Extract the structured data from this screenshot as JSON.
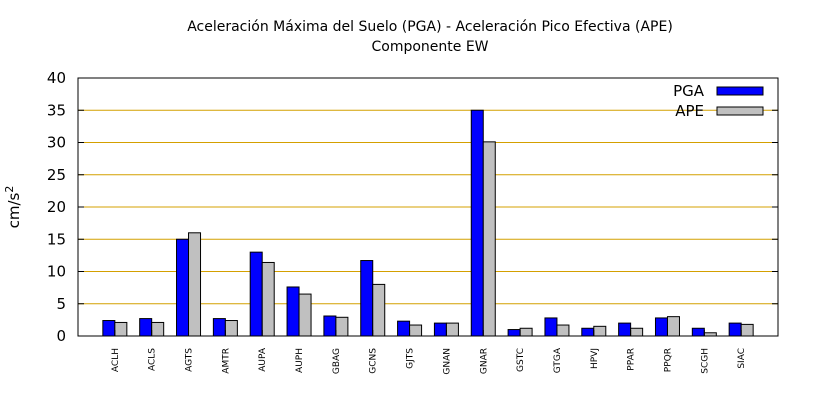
{
  "chart_data": {
    "type": "bar",
    "title": "Aceleración Máxima del Suelo (PGA) -  Aceleración Pico Efectiva (APE)",
    "subtitle": "Componente EW",
    "ylabel": "cm/s",
    "ylabel_superscript": "2",
    "xlabel": "",
    "ylim": [
      0,
      40
    ],
    "yticks": [
      0,
      5,
      10,
      15,
      20,
      25,
      30,
      35,
      40
    ],
    "grid": true,
    "legend_position": "top-right",
    "categories": [
      "ACLH",
      "ACLS",
      "AGTS",
      "AMTR",
      "AUPA",
      "AUPH",
      "GBAG",
      "GCNS",
      "GJTS",
      "GNAN",
      "GNAR",
      "GSTC",
      "GTGA",
      "HPVJ",
      "PPAR",
      "PPQR",
      "SCGH",
      "SIAC"
    ],
    "series": [
      {
        "name": "PGA",
        "color": "#0000ff",
        "values": [
          2.4,
          2.7,
          15.0,
          2.7,
          13.0,
          7.6,
          3.1,
          11.7,
          2.3,
          2.0,
          35.0,
          1.0,
          2.8,
          1.2,
          2.0,
          2.8,
          1.2,
          2.0
        ]
      },
      {
        "name": "APE",
        "color": "#c0c0c0",
        "values": [
          2.1,
          2.1,
          16.0,
          2.4,
          11.4,
          6.5,
          2.9,
          8.0,
          1.7,
          2.0,
          30.1,
          1.2,
          1.7,
          1.5,
          1.2,
          3.0,
          0.5,
          1.8
        ]
      }
    ]
  },
  "colors": {
    "grid": "#d4a000",
    "axis": "#000000"
  }
}
